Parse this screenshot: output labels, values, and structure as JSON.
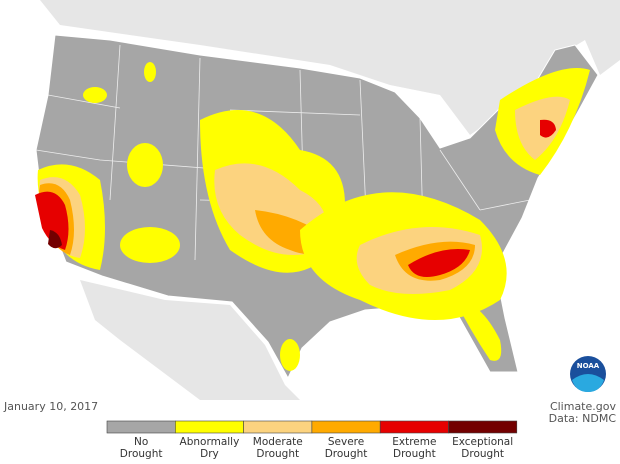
{
  "date": "January 10, 2017",
  "credit": [
    "Climate.gov",
    "Data: NDMC"
  ],
  "logo": "NOAA",
  "legend": [
    {
      "label": [
        "No",
        "Drought"
      ],
      "color": "#a6a6a6"
    },
    {
      "label": [
        "Abnormally",
        "Dry"
      ],
      "color": "#ffff00"
    },
    {
      "label": [
        "Moderate",
        "Drought"
      ],
      "color": "#fcd37f"
    },
    {
      "label": [
        "Severe",
        "Drought"
      ],
      "color": "#ffaa00"
    },
    {
      "label": [
        "Extreme",
        "Drought"
      ],
      "color": "#e60000"
    },
    {
      "label": [
        "Exceptional",
        "Drought"
      ],
      "color": "#730000"
    }
  ]
}
